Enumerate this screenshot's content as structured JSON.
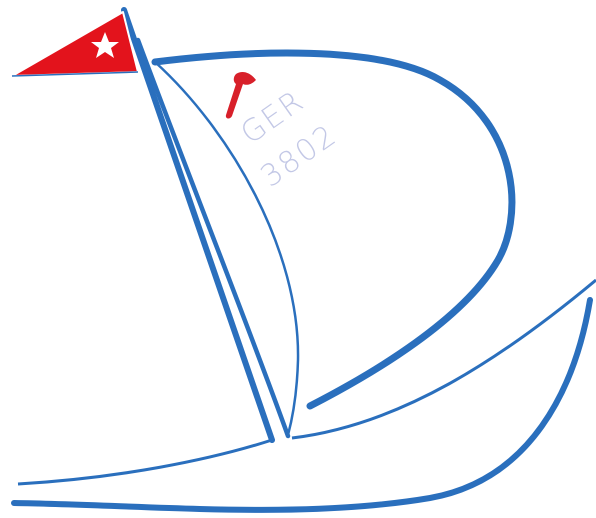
{
  "sail_number": {
    "country": "GER",
    "number": "3802"
  }
}
